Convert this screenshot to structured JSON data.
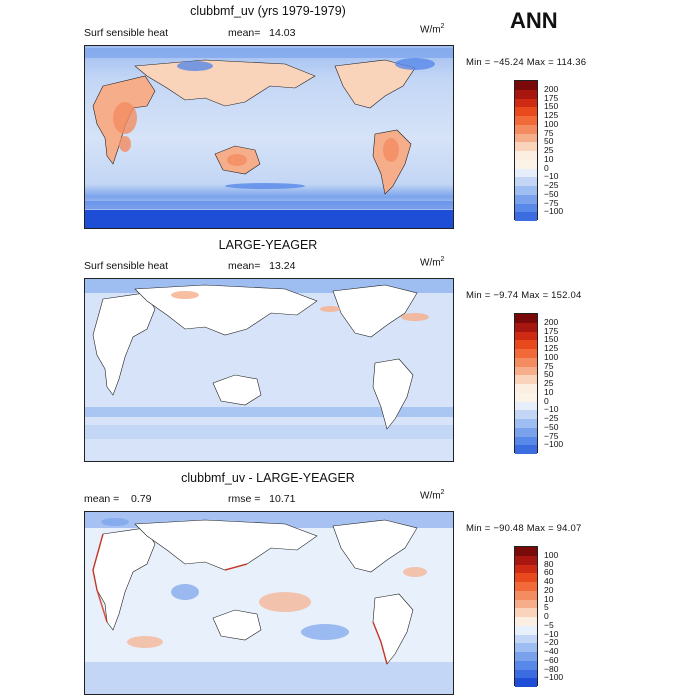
{
  "season": "ANN",
  "units": "W/m",
  "units_exp": "2",
  "panels": [
    {
      "title": "clubbmf_uv (yrs 1979-1979)",
      "left_label": "Surf sensible heat",
      "mid_label": "mean=",
      "mid_value": "14.03",
      "minmax": "Min = −45.24  Max = 114.36",
      "colorbar_labels": [
        "200",
        "175",
        "150",
        "125",
        "100",
        "75",
        "50",
        "25",
        "10",
        "0",
        "−10",
        "−25",
        "−50",
        "−75",
        "−100"
      ]
    },
    {
      "title": "LARGE-YEAGER",
      "left_label": "Surf sensible heat",
      "mid_label": "mean=",
      "mid_value": "13.24",
      "minmax": "Min =  −9.74  Max = 152.04",
      "colorbar_labels": [
        "200",
        "175",
        "150",
        "125",
        "100",
        "75",
        "50",
        "25",
        "10",
        "0",
        "−10",
        "−25",
        "−50",
        "−75",
        "−100"
      ]
    },
    {
      "title": "clubbmf_uv - LARGE-YEAGER",
      "left_label": "mean =",
      "left_value": "0.79",
      "mid_label": "rmse =",
      "mid_value": "10.71",
      "minmax": "Min = −90.48  Max =  94.07",
      "colorbar_labels": [
        "100",
        "80",
        "60",
        "40",
        "20",
        "10",
        "5",
        "0",
        "−5",
        "−10",
        "−20",
        "−40",
        "−60",
        "−80",
        "−100"
      ]
    }
  ],
  "colors": {
    "bar_top": [
      "#7a0a0a",
      "#a81610",
      "#cf2a14",
      "#e84a1e",
      "#f26a3a",
      "#f48c62",
      "#f6ae8a",
      "#fad3bb",
      "#fbeee2"
    ],
    "bar_mid_top": "#fbf2e8",
    "bar_mid_bot": "#e6eefb",
    "bar_bottom": [
      "#c3d6f5",
      "#9ebdf0",
      "#7aa2ec",
      "#5888e8",
      "#3b6ce0",
      "#1e4ed6",
      "#0a30b8",
      "#03168a"
    ],
    "diff_bar": [
      "#7a0a0a",
      "#a81610",
      "#cf2a14",
      "#e84a1e",
      "#f26a3a",
      "#f48c62",
      "#f6ae8a",
      "#fad3bb",
      "#fbeee2",
      "#e8f0fb",
      "#c3d6f5",
      "#9ebdf0",
      "#7aa2ec",
      "#5888e8",
      "#3b6ce0",
      "#1e4ed6",
      "#0a30b8",
      "#03168a"
    ]
  }
}
